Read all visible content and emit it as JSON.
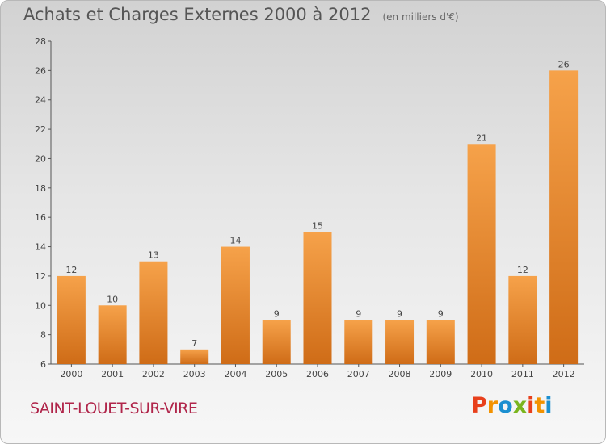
{
  "header": {
    "title": "Achats et Charges Externes 2000 à 2012",
    "subtitle": "(en milliers d'€)"
  },
  "footer": {
    "commune": "SAINT-LOUET-SUR-VIRE",
    "logo_letters": [
      "P",
      "r",
      "o",
      "x",
      "i",
      "t",
      "i"
    ],
    "logo_colors": [
      "#e8401c",
      "#f39200",
      "#1b8fd0",
      "#7ab51d",
      "#e8401c",
      "#f39200",
      "#1b8fd0"
    ]
  },
  "chart_data": {
    "type": "bar",
    "title": "Achats et Charges Externes 2000 à 2012",
    "subtitle": "(en milliers d'€)",
    "categories": [
      "2000",
      "2001",
      "2002",
      "2003",
      "2004",
      "2005",
      "2006",
      "2007",
      "2008",
      "2009",
      "2010",
      "2011",
      "2012"
    ],
    "values": [
      12,
      10,
      13,
      7,
      14,
      9,
      15,
      9,
      9,
      9,
      21,
      12,
      26
    ],
    "ylim": [
      6,
      28
    ],
    "yticks": [
      6,
      8,
      10,
      12,
      14,
      16,
      18,
      20,
      22,
      24,
      26,
      28
    ],
    "grid": false,
    "bar_color": "#f0902e",
    "bar_color_dark": "#d06e1a"
  }
}
